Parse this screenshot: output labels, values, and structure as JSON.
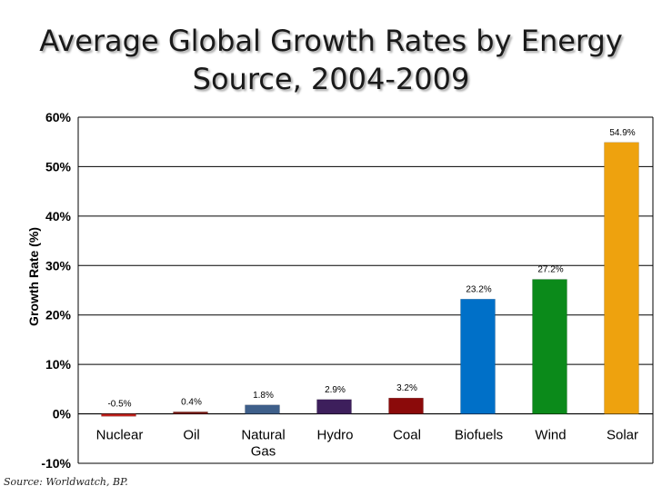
{
  "chart_data": {
    "type": "bar",
    "title_lines": [
      "Average Global Growth Rates by Energy",
      "Source, 2004-2009"
    ],
    "ylabel": "Growth Rate (%)",
    "xlabel": "",
    "ylim": [
      -10,
      60
    ],
    "y_ticks": [
      -10,
      0,
      10,
      20,
      30,
      40,
      50,
      60
    ],
    "y_tick_labels": [
      "-10%",
      "0%",
      "10%",
      "20%",
      "30%",
      "40%",
      "50%",
      "60%"
    ],
    "grid": true,
    "legend": "none",
    "categories": [
      [
        "Nuclear"
      ],
      [
        "Oil"
      ],
      [
        "Natural",
        "Gas"
      ],
      [
        "Hydro"
      ],
      [
        "Coal"
      ],
      [
        "Biofuels"
      ],
      [
        "Wind"
      ],
      [
        "Solar"
      ]
    ],
    "values": [
      -0.5,
      0.4,
      1.8,
      2.9,
      3.2,
      23.2,
      27.2,
      54.9
    ],
    "data_labels": [
      "-0.5%",
      "0.4%",
      "1.8%",
      "2.9%",
      "3.2%",
      "23.2%",
      "27.2%",
      "54.9%"
    ],
    "colors": [
      "#c0231e",
      "#7a1a12",
      "#3e5f8a",
      "#3d1f5c",
      "#8b0a0a",
      "#0070c8",
      "#0b8a1a",
      "#eea20e"
    ],
    "source": "Source: Worldwatch, BP."
  }
}
